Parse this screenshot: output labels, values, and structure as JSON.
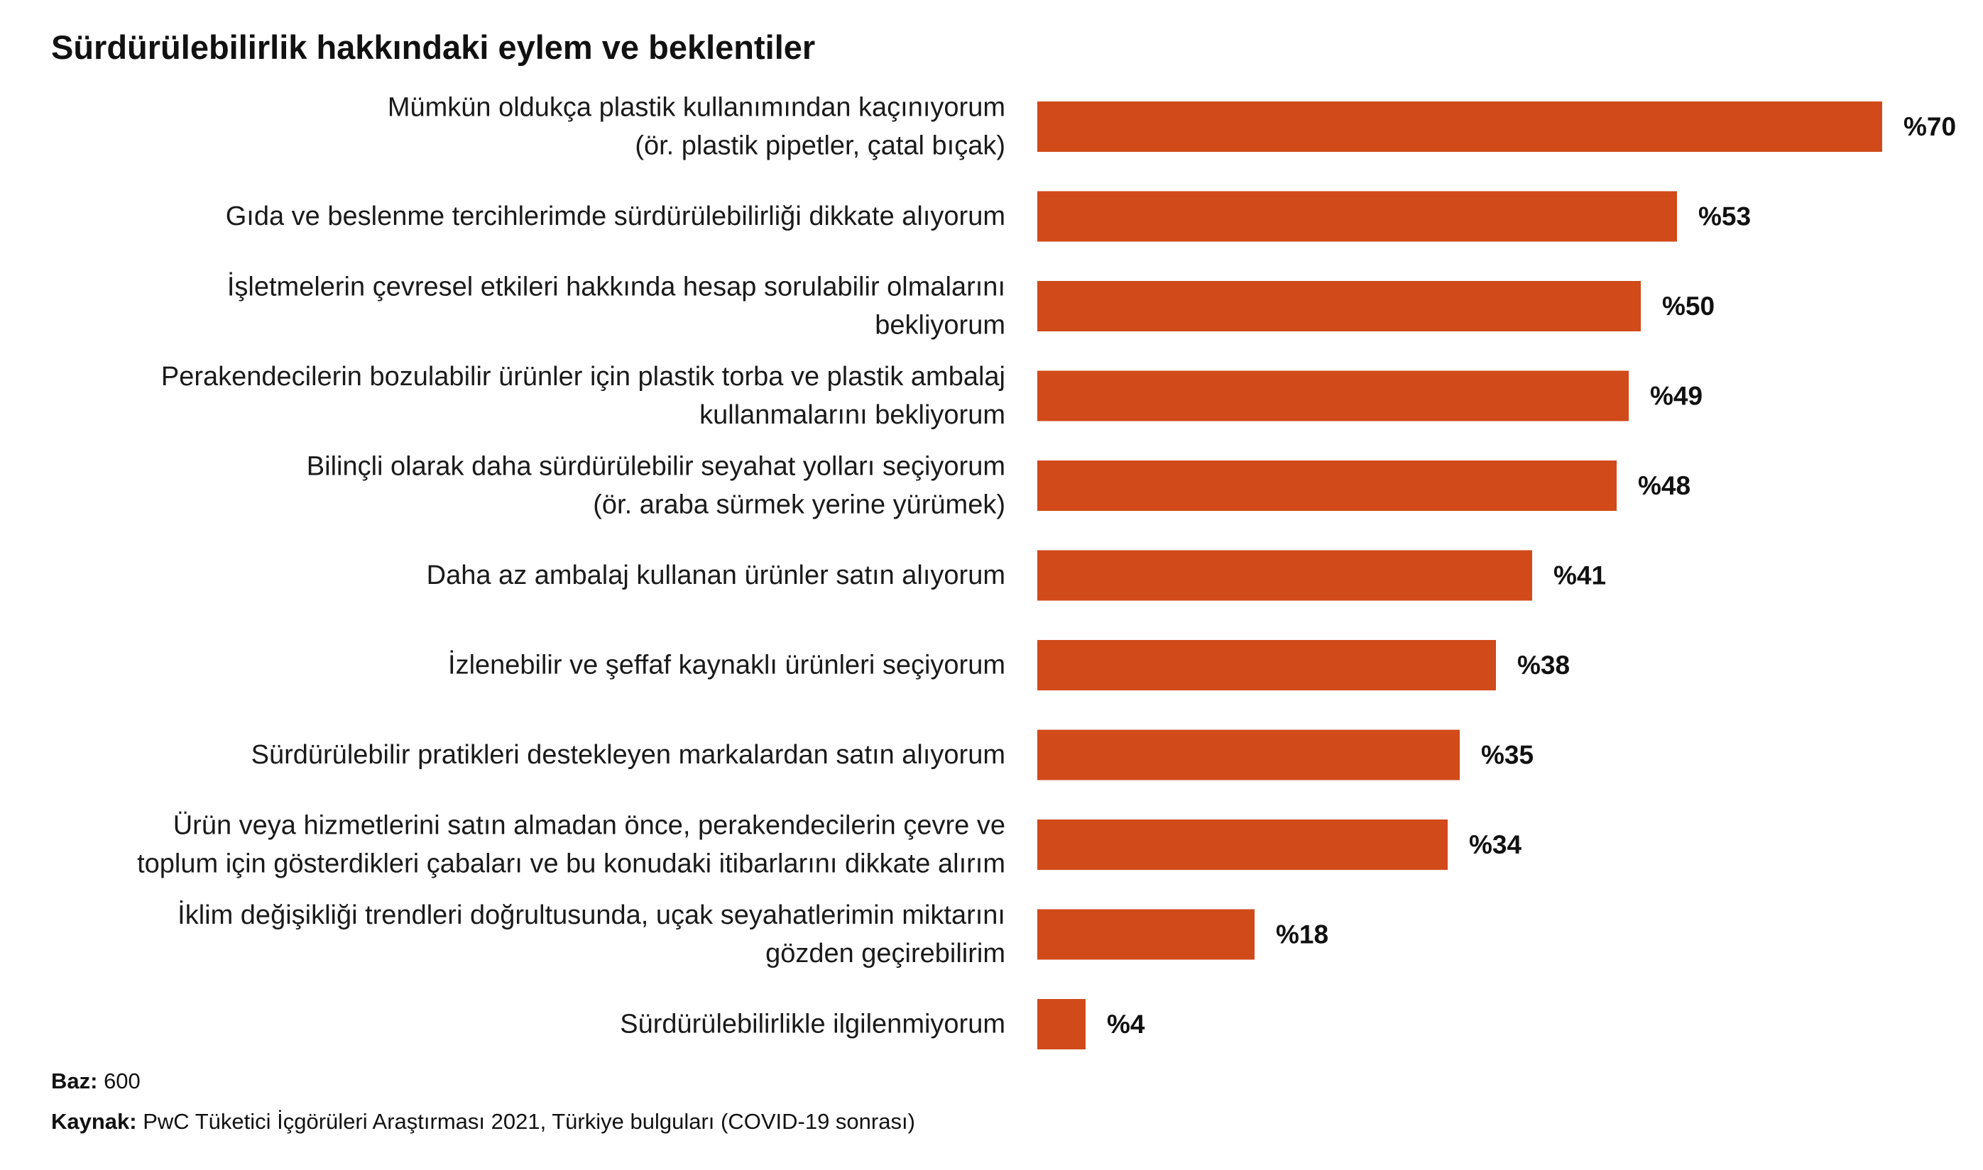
{
  "chart_data": {
    "type": "bar",
    "orientation": "horizontal",
    "title": "Sürdürülebilirlik hakkındaki eylem ve beklentiler",
    "categories": [
      [
        "Mümkün oldukça plastik kullanımından kaçınıyorum",
        "(ör. plastik pipetler, çatal bıçak)"
      ],
      [
        "Gıda ve beslenme tercihlerimde sürdürülebilirliği dikkate alıyorum"
      ],
      [
        "İşletmelerin çevresel etkileri hakkında hesap sorulabilir olmalarını",
        "bekliyorum"
      ],
      [
        "Perakendecilerin bozulabilir ürünler için plastik torba ve plastik ambalaj",
        "kullanmalarını bekliyorum"
      ],
      [
        "Bilinçli olarak daha sürdürülebilir seyahat yolları seçiyorum",
        "(ör. araba sürmek yerine yürümek)"
      ],
      [
        "Daha az ambalaj kullanan ürünler satın alıyorum"
      ],
      [
        "İzlenebilir ve şeffaf kaynaklı ürünleri seçiyorum"
      ],
      [
        "Sürdürülebilir pratikleri destekleyen markalardan satın alıyorum"
      ],
      [
        "Ürün veya hizmetlerini satın almadan önce, perakendecilerin çevre ve",
        "toplum için gösterdikleri çabaları ve bu konudaki itibarlarını dikkate alırım"
      ],
      [
        "İklim değişikliği trendleri doğrultusunda, uçak seyahatlerimin miktarını",
        "gözden geçirebilirim"
      ],
      [
        "Sürdürülebilirlikle ilgilenmiyorum"
      ]
    ],
    "values": [
      70,
      53,
      50,
      49,
      48,
      41,
      38,
      35,
      34,
      18,
      4
    ],
    "value_labels": [
      "%70",
      "%53",
      "%50",
      "%49",
      "%48",
      "%41",
      "%38",
      "%35",
      "%34",
      "%18",
      "%4"
    ],
    "bar_color": "#D04A1A",
    "xlim": [
      0,
      70
    ],
    "grid": false,
    "legend": "none"
  },
  "footnotes": {
    "base_label": "Baz:",
    "base_value": " 600",
    "source_label": "Kaynak:",
    "source_value": " PwC Tüketici İçgörüleri Araştırması 2021, Türkiye bulguları (COVID-19 sonrası)"
  }
}
